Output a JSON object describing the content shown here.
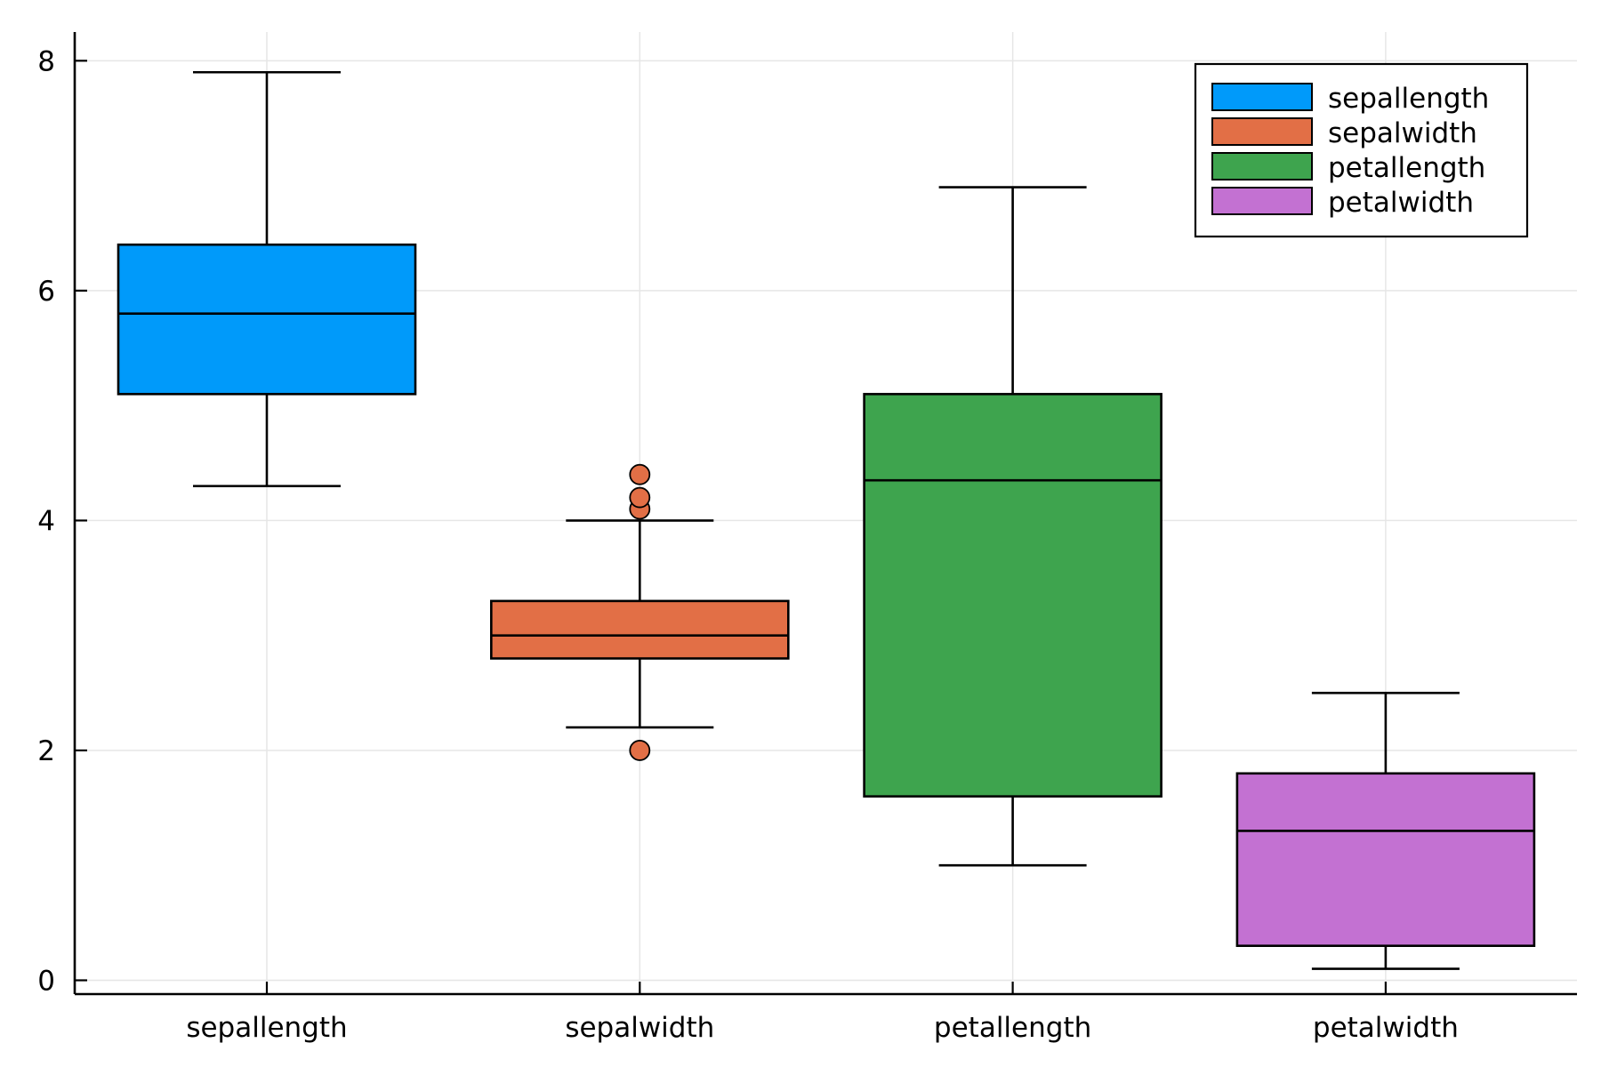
{
  "chart_data": {
    "type": "box",
    "title": "",
    "xlabel": "",
    "ylabel": "",
    "ylim": [
      -0.12,
      8.25
    ],
    "yticks": [
      0,
      2,
      4,
      6,
      8
    ],
    "grid": true,
    "legend_position": "top-right",
    "categories": [
      "sepallength",
      "sepalwidth",
      "petallength",
      "petalwidth"
    ],
    "series": [
      {
        "name": "sepallength",
        "color": "#009AFA",
        "whisker_low": 4.3,
        "q1": 5.1,
        "median": 5.8,
        "q3": 6.4,
        "whisker_high": 7.9,
        "outliers": []
      },
      {
        "name": "sepalwidth",
        "color": "#E26F46",
        "whisker_low": 2.2,
        "q1": 2.8,
        "median": 3.0,
        "q3": 3.3,
        "whisker_high": 4.0,
        "outliers": [
          2.0,
          4.1,
          4.2,
          4.4
        ]
      },
      {
        "name": "petallength",
        "color": "#3EA44E",
        "whisker_low": 1.0,
        "q1": 1.6,
        "median": 4.35,
        "q3": 5.1,
        "whisker_high": 6.9,
        "outliers": []
      },
      {
        "name": "petalwidth",
        "color": "#C371D2",
        "whisker_low": 0.1,
        "q1": 0.3,
        "median": 1.3,
        "q3": 1.8,
        "whisker_high": 2.5,
        "outliers": []
      }
    ]
  }
}
